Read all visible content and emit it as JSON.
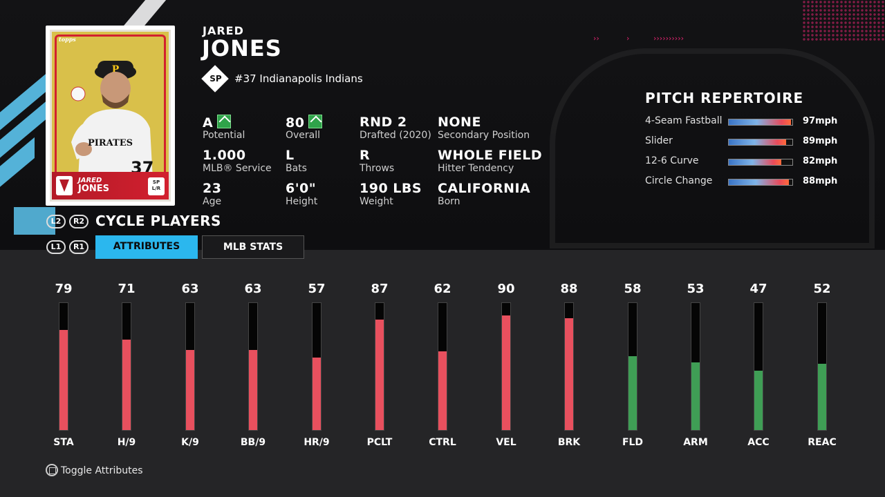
{
  "player": {
    "first_name": "JARED",
    "last_name": "JONES",
    "position": "SP",
    "team_line": "#37 Indianapolis Indians"
  },
  "card": {
    "brand": "topps",
    "first_name": "JARED",
    "last_name": "JONES",
    "pos_badge": "SP\nL/R",
    "jersey_text": "PIRATES",
    "jersey_number": "37",
    "colors": {
      "background": "#d9c04a",
      "frame": "#d2202f"
    }
  },
  "info": [
    {
      "value": "A",
      "label": "Potential",
      "upgrade": true
    },
    {
      "value": "80",
      "label": "Overall",
      "upgrade": true
    },
    {
      "value": "RND 2",
      "label": "Drafted (2020)",
      "upgrade": false
    },
    {
      "value": "NONE",
      "label": "Secondary Position",
      "upgrade": false
    },
    {
      "value": "1.000",
      "label": "MLB® Service",
      "upgrade": false
    },
    {
      "value": "L",
      "label": "Bats",
      "upgrade": false
    },
    {
      "value": "R",
      "label": "Throws",
      "upgrade": false
    },
    {
      "value": "WHOLE FIELD",
      "label": "Hitter Tendency",
      "upgrade": false
    },
    {
      "value": "23",
      "label": "Age",
      "upgrade": false
    },
    {
      "value": "6'0\"",
      "label": "Height",
      "upgrade": false
    },
    {
      "value": "190 LBS",
      "label": "Weight",
      "upgrade": false
    },
    {
      "value": "CALIFORNIA",
      "label": "Born",
      "upgrade": false
    }
  ],
  "controls": {
    "l2": "L2",
    "r2": "R2",
    "l1": "L1",
    "r1": "R1",
    "cycle_label": "CYCLE PLAYERS",
    "tabs": [
      {
        "label": "ATTRIBUTES",
        "active": true
      },
      {
        "label": "MLB STATS",
        "active": false
      }
    ],
    "toggle_hint": "Toggle Attributes"
  },
  "repertoire": {
    "title": "PITCH REPERTOIRE",
    "pitches": [
      {
        "name": "4-Seam Fastball",
        "speed": "97mph",
        "rating": 0.98
      },
      {
        "name": "Slider",
        "speed": "89mph",
        "rating": 0.9
      },
      {
        "name": "12-6 Curve",
        "speed": "82mph",
        "rating": 0.83
      },
      {
        "name": "Circle Change",
        "speed": "88mph",
        "rating": 0.95
      }
    ]
  },
  "attributes": [
    {
      "name": "STA",
      "value": 79,
      "color": "#e8505e"
    },
    {
      "name": "H/9",
      "value": 71,
      "color": "#e8505e"
    },
    {
      "name": "K/9",
      "value": 63,
      "color": "#e8505e"
    },
    {
      "name": "BB/9",
      "value": 63,
      "color": "#e8505e"
    },
    {
      "name": "HR/9",
      "value": 57,
      "color": "#e8505e"
    },
    {
      "name": "PCLT",
      "value": 87,
      "color": "#e8505e"
    },
    {
      "name": "CTRL",
      "value": 62,
      "color": "#e8505e"
    },
    {
      "name": "VEL",
      "value": 90,
      "color": "#e8505e"
    },
    {
      "name": "BRK",
      "value": 88,
      "color": "#e8505e"
    },
    {
      "name": "FLD",
      "value": 58,
      "color": "#3f9e55"
    },
    {
      "name": "ARM",
      "value": 53,
      "color": "#3f9e55"
    },
    {
      "name": "ACC",
      "value": 47,
      "color": "#3f9e55"
    },
    {
      "name": "REAC",
      "value": 52,
      "color": "#3f9e55"
    }
  ],
  "decor": {
    "pink_arrows": [
      "››",
      "›",
      "››››››››››"
    ],
    "accent_blue": "#2bb7ee",
    "accent_pink": "#e0246f"
  }
}
